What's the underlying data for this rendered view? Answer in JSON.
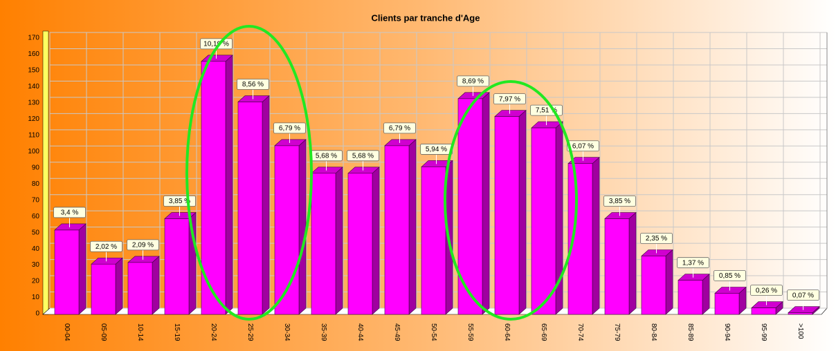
{
  "chart_data": {
    "type": "bar",
    "title": "Clients par tranche d'Age",
    "categories": [
      "00-04",
      "05-09",
      "10-14",
      "15-19",
      "20-24",
      "25-29",
      "30-34",
      "35-39",
      "40-44",
      "45-49",
      "50-54",
      "55-59",
      "60-64",
      "65-69",
      "70-74",
      "75-79",
      "80-84",
      "85-89",
      "90-94",
      "95-99",
      ">100"
    ],
    "values": [
      52,
      31,
      32,
      59,
      156,
      131,
      104,
      87,
      87,
      104,
      91,
      133,
      122,
      115,
      93,
      59,
      36,
      21,
      13,
      4,
      1
    ],
    "annotations": [
      "3,4 %",
      "2,02 %",
      "2,09 %",
      "3,85 %",
      "10,19 %",
      "8,56 %",
      "6,79 %",
      "5,68 %",
      "5,68 %",
      "6,79 %",
      "5,94 %",
      "8,69 %",
      "7,97 %",
      "7,51 %",
      "6,07 %",
      "3,85 %",
      "2,35 %",
      "1,37 %",
      "0,85 %",
      "0,26 %",
      "0,07 %"
    ],
    "color": "#ff00ff",
    "ylim": [
      0,
      170
    ],
    "yticks": [
      0,
      10,
      20,
      30,
      40,
      50,
      60,
      70,
      80,
      90,
      100,
      110,
      120,
      130,
      140,
      150,
      160,
      170
    ],
    "grid": true
  }
}
